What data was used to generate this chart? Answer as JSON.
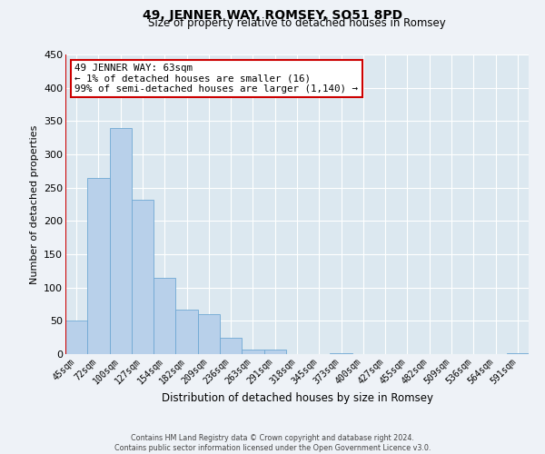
{
  "title": "49, JENNER WAY, ROMSEY, SO51 8PD",
  "subtitle": "Size of property relative to detached houses in Romsey",
  "xlabel": "Distribution of detached houses by size in Romsey",
  "ylabel": "Number of detached properties",
  "bar_labels": [
    "45sqm",
    "72sqm",
    "100sqm",
    "127sqm",
    "154sqm",
    "182sqm",
    "209sqm",
    "236sqm",
    "263sqm",
    "291sqm",
    "318sqm",
    "345sqm",
    "373sqm",
    "400sqm",
    "427sqm",
    "455sqm",
    "482sqm",
    "509sqm",
    "536sqm",
    "564sqm",
    "591sqm"
  ],
  "bar_values": [
    50,
    265,
    340,
    232,
    115,
    67,
    60,
    25,
    7,
    7,
    0,
    0,
    2,
    0,
    0,
    0,
    0,
    0,
    0,
    0,
    2
  ],
  "bar_color": "#b8d0ea",
  "bar_edge_color": "#6fa8d4",
  "highlight_color": "#cc0000",
  "red_line_bar_index": 0,
  "ylim": [
    0,
    450
  ],
  "yticks": [
    0,
    50,
    100,
    150,
    200,
    250,
    300,
    350,
    400,
    450
  ],
  "annotation_line1": "49 JENNER WAY: 63sqm",
  "annotation_line2": "← 1% of detached houses are smaller (16)",
  "annotation_line3": "99% of semi-detached houses are larger (1,140) →",
  "annotation_box_color": "#cc0000",
  "background_color": "#dce8f0",
  "grid_color": "#ffffff",
  "fig_bg_color": "#eef2f7",
  "footer_line1": "Contains HM Land Registry data © Crown copyright and database right 2024.",
  "footer_line2": "Contains public sector information licensed under the Open Government Licence v3.0."
}
